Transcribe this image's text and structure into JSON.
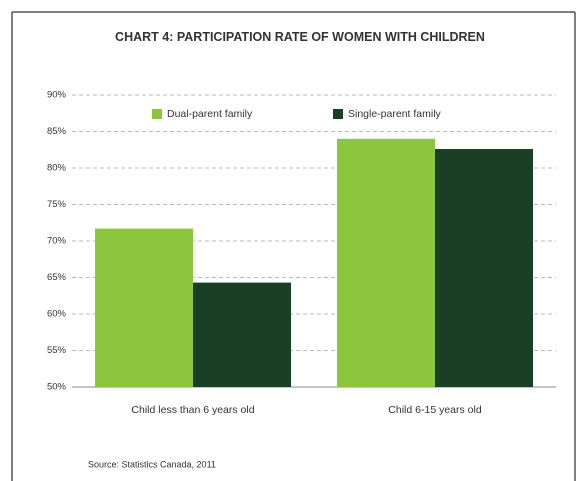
{
  "chart_data": {
    "type": "bar",
    "title": "CHART 4: PARTICIPATION RATE OF WOMEN WITH CHILDREN",
    "categories": [
      "Child less than 6 years old",
      "Child 6-15 years old"
    ],
    "series": [
      {
        "name": "Dual-parent family",
        "color": "#8cc63e",
        "values": [
          71.7,
          84
        ]
      },
      {
        "name": "Single-parent family",
        "color": "#1b3f24",
        "values": [
          64.3,
          82.6
        ]
      }
    ],
    "ylim": [
      50,
      90
    ],
    "yticks": [
      {
        "value": 50,
        "label": "50%"
      },
      {
        "value": 55,
        "label": "55%"
      },
      {
        "value": 60,
        "label": "60%"
      },
      {
        "value": 65,
        "label": "65%"
      },
      {
        "value": 70,
        "label": "70%"
      },
      {
        "value": 75,
        "label": "75%"
      },
      {
        "value": 80,
        "label": "80%"
      },
      {
        "value": 85,
        "label": "85%"
      },
      {
        "value": 90,
        "label": "90%"
      }
    ],
    "grid": true,
    "legend": "top",
    "source": "Source: Statistics Canada, 2011"
  }
}
